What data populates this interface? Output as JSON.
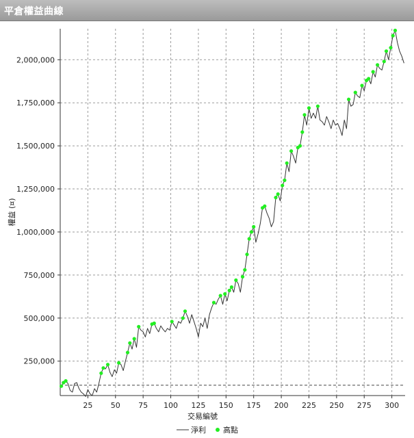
{
  "window": {
    "title": "平倉權益曲線"
  },
  "chart_data": {
    "type": "line",
    "xlabel": "交易編號",
    "ylabel": "權益 (¤)",
    "xlim": [
      0,
      312
    ],
    "ylim": [
      50000,
      2180000
    ],
    "x_ticks": [
      25,
      50,
      75,
      100,
      125,
      150,
      175,
      200,
      225,
      250,
      275,
      300
    ],
    "x_tick_labels": [
      "25",
      "50",
      "75",
      "100",
      "125",
      "150",
      "175",
      "200",
      "225",
      "250",
      "275",
      "300"
    ],
    "y_ticks": [
      250000,
      500000,
      750000,
      1000000,
      1250000,
      1500000,
      1750000,
      2000000
    ],
    "y_tick_labels": [
      "250,000",
      "500,000",
      "750,000",
      "1,000,000",
      "1,250,000",
      "1,500,000",
      "1,750,000",
      "2,000,000"
    ],
    "reference_line": 110000,
    "grid": true,
    "legend_position": "bottom-center",
    "series": [
      {
        "name": "淨利",
        "color": "#333333",
        "points": [
          [
            1,
            105000
          ],
          [
            3,
            125000
          ],
          [
            5,
            135000
          ],
          [
            7,
            120000
          ],
          [
            9,
            80000
          ],
          [
            11,
            70000
          ],
          [
            13,
            120000
          ],
          [
            15,
            125000
          ],
          [
            17,
            90000
          ],
          [
            19,
            70000
          ],
          [
            21,
            60000
          ],
          [
            23,
            45000
          ],
          [
            25,
            85000
          ],
          [
            27,
            60000
          ],
          [
            29,
            50000
          ],
          [
            31,
            90000
          ],
          [
            33,
            70000
          ],
          [
            35,
            120000
          ],
          [
            37,
            180000
          ],
          [
            39,
            210000
          ],
          [
            41,
            205000
          ],
          [
            43,
            230000
          ],
          [
            45,
            185000
          ],
          [
            47,
            160000
          ],
          [
            49,
            200000
          ],
          [
            51,
            180000
          ],
          [
            53,
            240000
          ],
          [
            55,
            230000
          ],
          [
            57,
            195000
          ],
          [
            59,
            250000
          ],
          [
            61,
            300000
          ],
          [
            63,
            355000
          ],
          [
            65,
            320000
          ],
          [
            67,
            380000
          ],
          [
            69,
            330000
          ],
          [
            71,
            450000
          ],
          [
            73,
            430000
          ],
          [
            75,
            420000
          ],
          [
            77,
            390000
          ],
          [
            79,
            440000
          ],
          [
            81,
            410000
          ],
          [
            83,
            465000
          ],
          [
            85,
            470000
          ],
          [
            87,
            440000
          ],
          [
            89,
            420000
          ],
          [
            91,
            455000
          ],
          [
            93,
            435000
          ],
          [
            95,
            420000
          ],
          [
            97,
            440000
          ],
          [
            99,
            430000
          ],
          [
            101,
            480000
          ],
          [
            103,
            460000
          ],
          [
            105,
            440000
          ],
          [
            107,
            480000
          ],
          [
            109,
            470000
          ],
          [
            111,
            500000
          ],
          [
            113,
            540000
          ],
          [
            115,
            510000
          ],
          [
            117,
            470000
          ],
          [
            119,
            520000
          ],
          [
            121,
            480000
          ],
          [
            123,
            440000
          ],
          [
            125,
            390000
          ],
          [
            127,
            470000
          ],
          [
            129,
            450000
          ],
          [
            131,
            500000
          ],
          [
            133,
            440000
          ],
          [
            135,
            520000
          ],
          [
            137,
            560000
          ],
          [
            139,
            590000
          ],
          [
            141,
            580000
          ],
          [
            143,
            610000
          ],
          [
            145,
            630000
          ],
          [
            147,
            580000
          ],
          [
            149,
            640000
          ],
          [
            151,
            600000
          ],
          [
            153,
            660000
          ],
          [
            155,
            680000
          ],
          [
            157,
            650000
          ],
          [
            159,
            720000
          ],
          [
            161,
            700000
          ],
          [
            163,
            650000
          ],
          [
            165,
            740000
          ],
          [
            167,
            780000
          ],
          [
            169,
            870000
          ],
          [
            171,
            960000
          ],
          [
            173,
            1000000
          ],
          [
            175,
            1030000
          ],
          [
            177,
            940000
          ],
          [
            179,
            990000
          ],
          [
            181,
            1050000
          ],
          [
            183,
            1140000
          ],
          [
            185,
            1150000
          ],
          [
            187,
            1110000
          ],
          [
            189,
            1080000
          ],
          [
            191,
            1030000
          ],
          [
            193,
            1060000
          ],
          [
            195,
            1200000
          ],
          [
            197,
            1220000
          ],
          [
            199,
            1180000
          ],
          [
            201,
            1270000
          ],
          [
            203,
            1300000
          ],
          [
            205,
            1400000
          ],
          [
            207,
            1350000
          ],
          [
            209,
            1470000
          ],
          [
            211,
            1440000
          ],
          [
            213,
            1400000
          ],
          [
            215,
            1490000
          ],
          [
            217,
            1500000
          ],
          [
            219,
            1580000
          ],
          [
            221,
            1680000
          ],
          [
            223,
            1620000
          ],
          [
            225,
            1720000
          ],
          [
            227,
            1660000
          ],
          [
            229,
            1690000
          ],
          [
            231,
            1660000
          ],
          [
            233,
            1730000
          ],
          [
            235,
            1650000
          ],
          [
            237,
            1640000
          ],
          [
            239,
            1620000
          ],
          [
            241,
            1670000
          ],
          [
            243,
            1640000
          ],
          [
            245,
            1600000
          ],
          [
            247,
            1650000
          ],
          [
            249,
            1620000
          ],
          [
            251,
            1630000
          ],
          [
            253,
            1600000
          ],
          [
            255,
            1560000
          ],
          [
            257,
            1650000
          ],
          [
            259,
            1600000
          ],
          [
            261,
            1770000
          ],
          [
            263,
            1730000
          ],
          [
            265,
            1740000
          ],
          [
            267,
            1810000
          ],
          [
            269,
            1790000
          ],
          [
            271,
            1780000
          ],
          [
            273,
            1850000
          ],
          [
            275,
            1820000
          ],
          [
            277,
            1880000
          ],
          [
            279,
            1890000
          ],
          [
            281,
            1860000
          ],
          [
            283,
            1930000
          ],
          [
            285,
            1900000
          ],
          [
            287,
            1970000
          ],
          [
            289,
            1950000
          ],
          [
            291,
            1940000
          ],
          [
            293,
            1990000
          ],
          [
            295,
            2050000
          ],
          [
            297,
            2000000
          ],
          [
            299,
            2070000
          ],
          [
            301,
            2140000
          ],
          [
            303,
            2170000
          ],
          [
            305,
            2100000
          ],
          [
            307,
            2050000
          ],
          [
            309,
            2020000
          ],
          [
            311,
            1980000
          ]
        ]
      },
      {
        "name": "高點",
        "color": "#22ee22",
        "points": [
          [
            1,
            105000
          ],
          [
            3,
            125000
          ],
          [
            5,
            135000
          ],
          [
            37,
            180000
          ],
          [
            39,
            210000
          ],
          [
            43,
            230000
          ],
          [
            53,
            240000
          ],
          [
            61,
            300000
          ],
          [
            63,
            355000
          ],
          [
            67,
            380000
          ],
          [
            71,
            450000
          ],
          [
            83,
            465000
          ],
          [
            85,
            470000
          ],
          [
            101,
            480000
          ],
          [
            111,
            500000
          ],
          [
            113,
            540000
          ],
          [
            139,
            590000
          ],
          [
            145,
            630000
          ],
          [
            149,
            640000
          ],
          [
            153,
            660000
          ],
          [
            155,
            680000
          ],
          [
            159,
            720000
          ],
          [
            165,
            740000
          ],
          [
            167,
            780000
          ],
          [
            169,
            870000
          ],
          [
            171,
            960000
          ],
          [
            173,
            1000000
          ],
          [
            175,
            1030000
          ],
          [
            183,
            1140000
          ],
          [
            185,
            1150000
          ],
          [
            195,
            1200000
          ],
          [
            197,
            1220000
          ],
          [
            201,
            1270000
          ],
          [
            203,
            1300000
          ],
          [
            205,
            1400000
          ],
          [
            209,
            1470000
          ],
          [
            215,
            1490000
          ],
          [
            217,
            1500000
          ],
          [
            219,
            1580000
          ],
          [
            221,
            1680000
          ],
          [
            225,
            1720000
          ],
          [
            233,
            1730000
          ],
          [
            261,
            1770000
          ],
          [
            267,
            1810000
          ],
          [
            273,
            1850000
          ],
          [
            277,
            1880000
          ],
          [
            279,
            1890000
          ],
          [
            283,
            1930000
          ],
          [
            287,
            1970000
          ],
          [
            293,
            1990000
          ],
          [
            295,
            2050000
          ],
          [
            299,
            2070000
          ],
          [
            301,
            2140000
          ],
          [
            303,
            2170000
          ]
        ]
      }
    ]
  }
}
